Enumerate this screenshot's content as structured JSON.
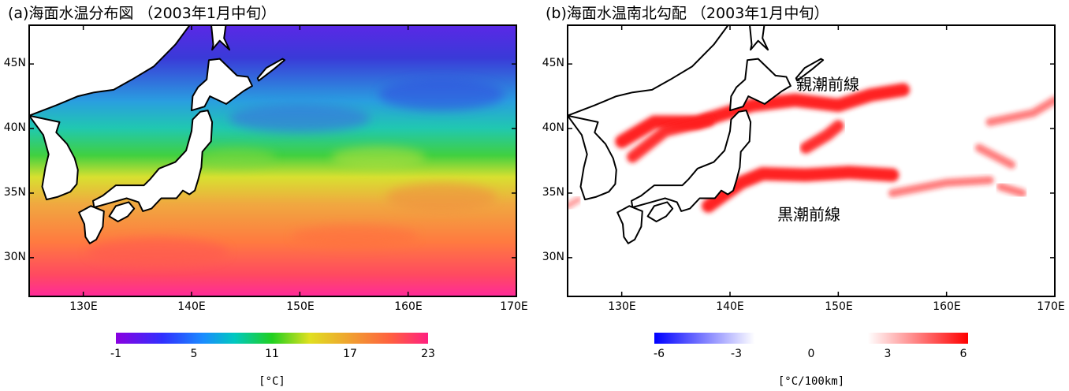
{
  "panels": [
    {
      "id": "a",
      "title": "(a)海面水温分布図 （2003年1月中旬）",
      "lat_ticks": [
        "30N",
        "35N",
        "40N",
        "45N"
      ],
      "lon_ticks": [
        "130E",
        "140E",
        "150E",
        "160E",
        "170E"
      ],
      "colorbar": {
        "ticks": [
          "-1",
          "5",
          "11",
          "17",
          "23"
        ],
        "unit": "[°C]"
      }
    },
    {
      "id": "b",
      "title": "(b)海面水温南北勾配 （2003年1月中旬）",
      "lat_ticks": [
        "30N",
        "35N",
        "40N",
        "45N"
      ],
      "lon_ticks": [
        "130E",
        "140E",
        "150E",
        "160E",
        "170E"
      ],
      "labels": {
        "oyashio": "親潮前線",
        "kuroshio": "黒潮前線"
      },
      "colorbar": {
        "ticks": [
          "-6",
          "-3",
          "0",
          "3",
          "6"
        ],
        "unit": "[°C/100km]"
      }
    }
  ],
  "chart_data": [
    {
      "type": "heatmap",
      "title": "(a)海面水温分布図 （2003年1月中旬）",
      "lon_range": [
        125,
        170
      ],
      "lat_range": [
        27,
        48
      ],
      "value_range": [
        -1,
        23
      ],
      "unit": "°C",
      "colormap": [
        "#8a00e0",
        "#2020ff",
        "#00c0d0",
        "#20d020",
        "#e0e020",
        "#f0a030",
        "#ff6040",
        "#ff2080"
      ],
      "zonal_bands": [
        {
          "lat": 47,
          "value": 0
        },
        {
          "lat": 44,
          "value": 2
        },
        {
          "lat": 41,
          "value": 7
        },
        {
          "lat": 39,
          "value": 11
        },
        {
          "lat": 36,
          "value": 17
        },
        {
          "lat": 33,
          "value": 19
        },
        {
          "lat": 30,
          "value": 21
        },
        {
          "lat": 27,
          "value": 23
        }
      ]
    },
    {
      "type": "heatmap",
      "title": "(b)海面水温南北勾配 （2003年1月中旬）",
      "lon_range": [
        125,
        170
      ],
      "lat_range": [
        27,
        48
      ],
      "value_range": [
        -6,
        6
      ],
      "unit": "°C/100km",
      "colormap": [
        "#0000ff",
        "#ffffff",
        "#ff0000"
      ],
      "fronts": [
        {
          "name": "親潮前線",
          "points": [
            [
              130,
              39
            ],
            [
              133,
              40.5
            ],
            [
              137,
              40.5
            ],
            [
              142,
              41.8
            ],
            [
              146,
              42.2
            ],
            [
              150,
              41.8
            ],
            [
              153,
              42.6
            ],
            [
              156,
              43.0
            ]
          ],
          "value": 5
        },
        {
          "name": "黒潮前線",
          "points": [
            [
              138,
              34
            ],
            [
              141,
              35.8
            ],
            [
              143,
              36.5
            ],
            [
              147,
              36.4
            ],
            [
              151,
              36.6
            ],
            [
              155,
              36.4
            ]
          ],
          "value": 5
        },
        {
          "name": "",
          "points": [
            [
              131,
              37.8
            ],
            [
              134,
              39.8
            ],
            [
              138,
              40.6
            ]
          ],
          "value": 4
        },
        {
          "name": "",
          "points": [
            [
              147,
              38.5
            ],
            [
              149,
              39.5
            ],
            [
              150,
              40.2
            ]
          ],
          "value": 4
        },
        {
          "name": "",
          "points": [
            [
              155,
              35.0
            ],
            [
              160,
              35.8
            ],
            [
              164,
              36.0
            ]
          ],
          "value": 2
        },
        {
          "name": "",
          "points": [
            [
              165,
              35.5
            ],
            [
              167,
              35.0
            ]
          ],
          "value": 2
        },
        {
          "name": "",
          "points": [
            [
              164,
              40.5
            ],
            [
              168,
              41.2
            ],
            [
              170,
              42.2
            ]
          ],
          "value": 2
        },
        {
          "name": "",
          "points": [
            [
              163,
              38.5
            ],
            [
              166,
              37.2
            ]
          ],
          "value": 2
        },
        {
          "name": "",
          "points": [
            [
              125,
              34
            ],
            [
              126,
              34.5
            ]
          ],
          "value": 1
        }
      ]
    }
  ]
}
